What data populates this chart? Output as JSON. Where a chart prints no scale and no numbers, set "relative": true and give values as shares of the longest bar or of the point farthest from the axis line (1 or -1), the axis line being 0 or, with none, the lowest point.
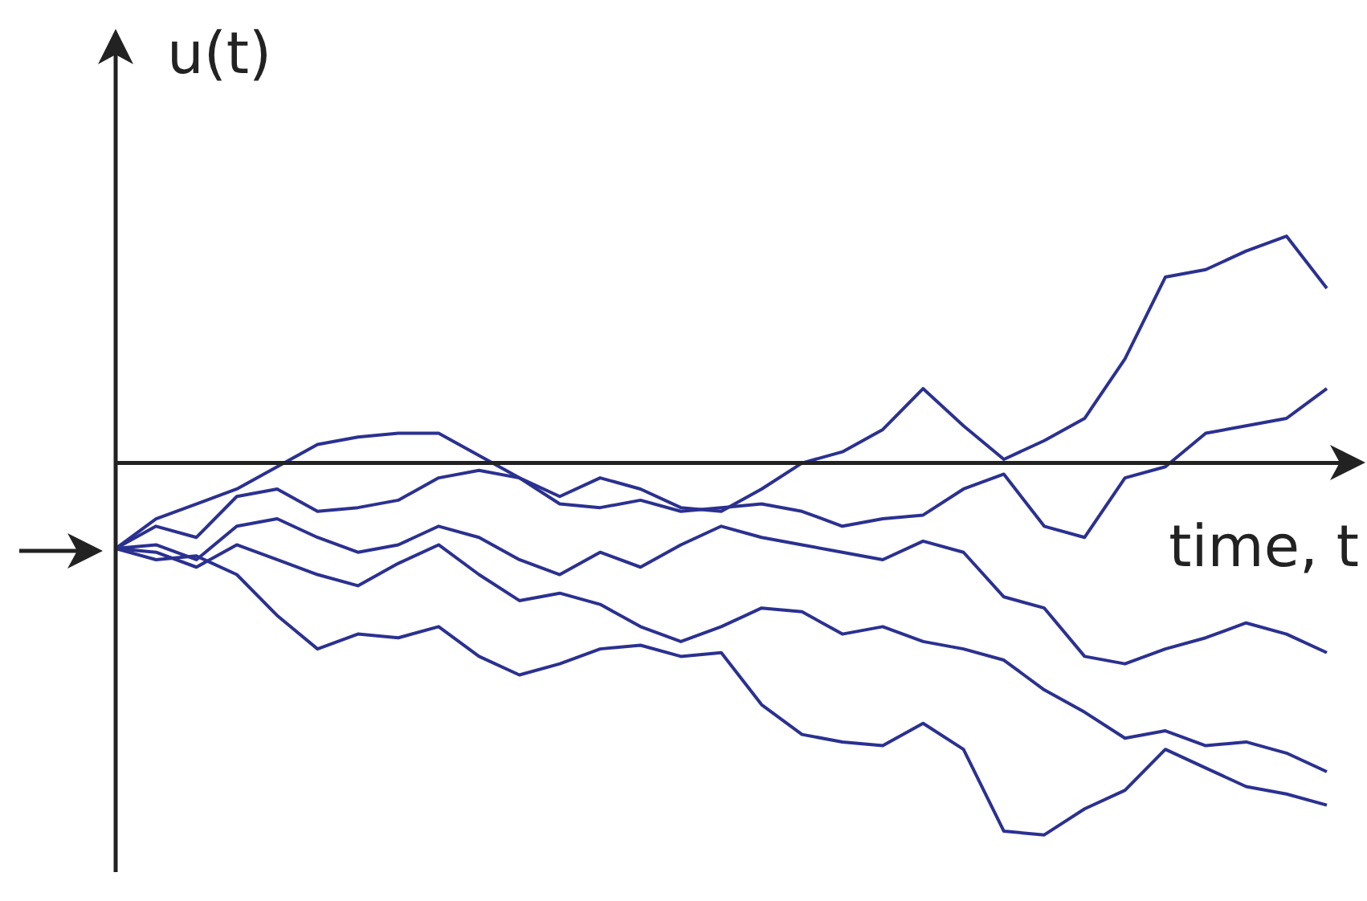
{
  "chart_data": {
    "type": "line",
    "xlabel": "time, t",
    "ylabel": "u(t)",
    "relative": true,
    "legend": false,
    "grid": false,
    "marker": "none",
    "line_style": "solid",
    "categories": [
      null,
      null,
      null,
      null,
      null,
      null,
      null,
      null,
      null,
      null,
      null,
      null,
      null,
      null,
      null,
      null,
      null,
      null,
      null,
      null,
      null,
      null,
      null,
      null,
      null,
      null,
      null,
      null,
      null,
      null,
      null
    ],
    "series": [
      {
        "color": "#2b3190",
        "values": [
          -0.23,
          -0.15,
          -0.11,
          -0.07,
          -0.01,
          0.05,
          0.07,
          0.08,
          0.08,
          0.02,
          -0.04,
          -0.09,
          -0.04,
          -0.07,
          -0.12,
          -0.13,
          -0.07,
          0,
          0.03,
          0.09,
          0.2,
          0.1,
          0.01,
          0.06,
          0.12,
          0.28,
          0.5,
          0.52,
          0.57,
          0.61,
          0.47
        ]
      },
      {
        "color": "#2b3190",
        "values": [
          -0.23,
          -0.17,
          -0.2,
          -0.09,
          -0.07,
          -0.13,
          -0.12,
          -0.1,
          -0.04,
          -0.02,
          -0.04,
          -0.11,
          -0.12,
          -0.1,
          -0.13,
          -0.12,
          -0.11,
          -0.13,
          -0.17,
          -0.15,
          -0.14,
          -0.07,
          -0.03,
          -0.17,
          -0.2,
          -0.04,
          -0.01,
          0.08,
          0.1,
          0.12,
          0.2
        ]
      },
      {
        "color": "#2b3190",
        "values": [
          -0.23,
          -0.22,
          -0.26,
          -0.17,
          -0.15,
          -0.2,
          -0.24,
          -0.22,
          -0.17,
          -0.2,
          -0.26,
          -0.3,
          -0.24,
          -0.28,
          -0.22,
          -0.17,
          -0.2,
          -0.22,
          -0.24,
          -0.26,
          -0.21,
          -0.24,
          -0.36,
          -0.39,
          -0.52,
          -0.54,
          -0.5,
          -0.47,
          -0.43,
          -0.46,
          -0.51
        ]
      },
      {
        "color": "#2b3190",
        "values": [
          -0.23,
          -0.24,
          -0.28,
          -0.22,
          -0.26,
          -0.3,
          -0.33,
          -0.27,
          -0.22,
          -0.3,
          -0.37,
          -0.35,
          -0.38,
          -0.44,
          -0.48,
          -0.44,
          -0.39,
          -0.4,
          -0.46,
          -0.44,
          -0.48,
          -0.5,
          -0.53,
          -0.61,
          -0.67,
          -0.74,
          -0.72,
          -0.76,
          -0.75,
          -0.78,
          -0.83
        ]
      },
      {
        "color": "#2b3190",
        "values": [
          -0.23,
          -0.26,
          -0.25,
          -0.3,
          -0.41,
          -0.5,
          -0.46,
          -0.47,
          -0.44,
          -0.52,
          -0.57,
          -0.54,
          -0.5,
          -0.49,
          -0.52,
          -0.51,
          -0.65,
          -0.73,
          -0.75,
          -0.76,
          -0.7,
          -0.77,
          -0.99,
          -1,
          -0.93,
          -0.88,
          -0.77,
          -0.82,
          -0.87,
          -0.89,
          -0.92
        ]
      }
    ]
  }
}
